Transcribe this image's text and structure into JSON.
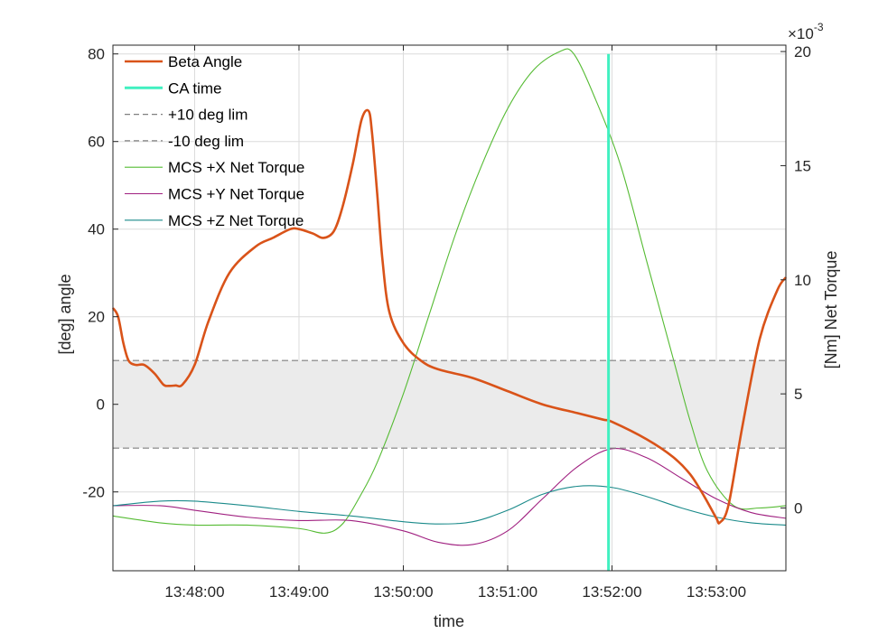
{
  "chart_data": {
    "type": "line",
    "xlabel": "time",
    "ylabel_left": "[deg] angle",
    "ylabel_right": "[Nm] Net Torque",
    "right_axis_exponent": "×10",
    "right_axis_exponent_power": "-3",
    "x_ticks": [
      "13:48:00",
      "13:49:00",
      "13:50:00",
      "13:51:00",
      "13:52:00",
      "13:53:00"
    ],
    "x_range": [
      "13:47:13",
      "13:53:40"
    ],
    "y_left_ticks": [
      "80",
      "60",
      "40",
      "20",
      "0",
      "-20"
    ],
    "y_left_range": [
      -38,
      82
    ],
    "y_right_ticks": [
      "20",
      "15",
      "10",
      "5",
      "0"
    ],
    "y_right_range": [
      -2.75,
      20.28
    ],
    "grid": true,
    "legend_position": "top-left",
    "series": [
      {
        "name": "Beta Angle",
        "axis": "left",
        "color": "#D95319",
        "x": [
          "13:47:13",
          "13:47:16",
          "13:47:19",
          "13:47:22",
          "13:47:26",
          "13:47:31",
          "13:47:37",
          "13:47:42",
          "13:47:45",
          "13:47:49",
          "13:47:53",
          "13:48:00",
          "13:48:08",
          "13:48:20",
          "13:48:35",
          "13:48:45",
          "13:48:55",
          "13:49:00",
          "13:49:08",
          "13:49:14",
          "13:49:20",
          "13:49:25",
          "13:49:31",
          "13:49:36",
          "13:49:40",
          "13:49:42",
          "13:49:45",
          "13:49:48",
          "13:49:52",
          "13:50:00",
          "13:50:10",
          "13:50:20",
          "13:50:40",
          "13:51:00",
          "13:51:20",
          "13:51:40",
          "13:51:55",
          "13:52:00",
          "13:52:20",
          "13:52:35",
          "13:52:45",
          "13:52:53",
          "13:53:00",
          "13:53:02",
          "13:53:07",
          "13:53:15",
          "13:53:25",
          "13:53:35",
          "13:53:40"
        ],
        "values": [
          22,
          20,
          14,
          10,
          9,
          9,
          7,
          4.5,
          4.2,
          4.3,
          4.5,
          9,
          19,
          30,
          36,
          38,
          40,
          40,
          39,
          38,
          39.5,
          45,
          55,
          65,
          67,
          62,
          48,
          33,
          21,
          14,
          10,
          8,
          6,
          3,
          0,
          -2,
          -3.5,
          -4,
          -8,
          -12,
          -16,
          -21,
          -26,
          -27,
          -23,
          -5,
          15,
          26,
          29
        ]
      },
      {
        "name": "CA time",
        "axis": "left",
        "color": "#40F0C0",
        "x": [
          "13:51:58",
          "13:51:58"
        ],
        "values": [
          80,
          -38
        ]
      },
      {
        "name": "+10 deg lim",
        "axis": "left",
        "color": "#808080",
        "dash": true,
        "x": [
          "13:47:13",
          "13:53:40"
        ],
        "values": [
          10,
          10
        ]
      },
      {
        "name": "-10 deg lim",
        "axis": "left",
        "color": "#808080",
        "dash": true,
        "x": [
          "13:47:13",
          "13:53:40"
        ],
        "values": [
          -10,
          -10
        ]
      },
      {
        "name": "MCS +X Net Torque",
        "axis": "right",
        "color": "#55BB33",
        "x": [
          "13:47:13",
          "13:47:40",
          "13:48:00",
          "13:48:30",
          "13:49:00",
          "13:49:15",
          "13:49:25",
          "13:49:35",
          "13:49:45",
          "13:50:00",
          "13:50:15",
          "13:50:30",
          "13:50:45",
          "13:51:00",
          "13:51:15",
          "13:51:30",
          "13:51:38",
          "13:51:50",
          "13:52:05",
          "13:52:20",
          "13:52:35",
          "13:52:45",
          "13:52:55",
          "13:53:10",
          "13:53:25",
          "13:53:40"
        ],
        "values": [
          -0.35,
          -0.65,
          -0.75,
          -0.75,
          -0.9,
          -1.1,
          -0.7,
          0.5,
          2,
          5,
          8.5,
          12,
          15,
          17.5,
          19.2,
          20,
          19.9,
          18,
          15,
          10.8,
          6.6,
          3.8,
          1.6,
          0.1,
          0,
          0.1
        ]
      },
      {
        "name": "MCS +Y Net Torque",
        "axis": "right",
        "color": "#A02080",
        "x": [
          "13:47:13",
          "13:47:40",
          "13:48:00",
          "13:48:30",
          "13:49:00",
          "13:49:30",
          "13:50:00",
          "13:50:20",
          "13:50:40",
          "13:51:00",
          "13:51:20",
          "13:51:40",
          "13:52:00",
          "13:52:20",
          "13:52:40",
          "13:53:00",
          "13:53:20",
          "13:53:40"
        ],
        "values": [
          0.1,
          0.1,
          -0.1,
          -0.4,
          -0.55,
          -0.55,
          -1.0,
          -1.5,
          -1.6,
          -1.0,
          0.4,
          1.8,
          2.6,
          2.2,
          1.3,
          0.4,
          -0.2,
          -0.45
        ]
      },
      {
        "name": "MCS +Z Net Torque",
        "axis": "right",
        "color": "#1A8A8A",
        "x": [
          "13:47:13",
          "13:47:40",
          "13:48:00",
          "13:48:30",
          "13:49:00",
          "13:49:30",
          "13:50:00",
          "13:50:20",
          "13:50:40",
          "13:51:00",
          "13:51:20",
          "13:51:40",
          "13:52:00",
          "13:52:20",
          "13:52:40",
          "13:53:00",
          "13:53:20",
          "13:53:40"
        ],
        "values": [
          0.1,
          0.3,
          0.3,
          0.1,
          -0.15,
          -0.35,
          -0.6,
          -0.7,
          -0.6,
          -0.1,
          0.6,
          0.95,
          0.9,
          0.5,
          0,
          -0.4,
          -0.65,
          -0.75
        ]
      }
    ]
  }
}
